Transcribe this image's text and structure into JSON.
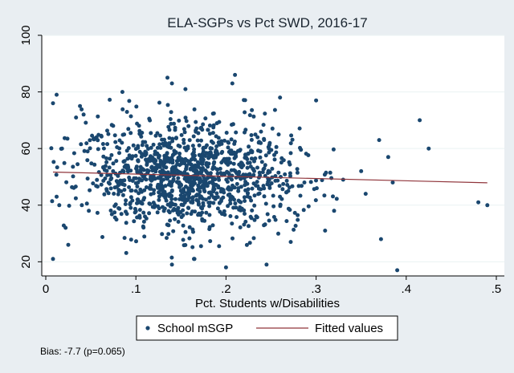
{
  "chart_data": {
    "type": "scatter",
    "title": "ELA-SGPs vs Pct SWD, 2016-17",
    "xlabel": "Pct. Students w/Disabilities",
    "ylabel": "",
    "xlim": [
      0,
      0.5
    ],
    "ylim": [
      15,
      100
    ],
    "x_ticks": [
      0,
      0.1,
      0.2,
      0.3,
      0.4,
      0.5
    ],
    "x_tick_labels": [
      "0",
      ".1",
      ".2",
      ".3",
      ".4",
      ".5"
    ],
    "y_ticks": [
      20,
      40,
      60,
      80,
      100
    ],
    "y_tick_labels": [
      "20",
      "40",
      "60",
      "80",
      "100"
    ],
    "grid": "horizontal",
    "legend_position": "bottom",
    "series": [
      {
        "name": "School mSGP",
        "kind": "scatter",
        "color": "#1a476f",
        "note": "Dense cloud of ~1200 schools centered near x=0.15, y=50 (SD ~9); listed points are the visible outliers",
        "outliers": [
          {
            "x": 0.008,
            "y": 76
          },
          {
            "x": 0.012,
            "y": 79
          },
          {
            "x": 0.018,
            "y": 60
          },
          {
            "x": 0.008,
            "y": 21
          },
          {
            "x": 0.025,
            "y": 26
          },
          {
            "x": 0.012,
            "y": 43
          },
          {
            "x": 0.015,
            "y": 40
          },
          {
            "x": 0.022,
            "y": 32
          },
          {
            "x": 0.038,
            "y": 75
          },
          {
            "x": 0.042,
            "y": 72
          },
          {
            "x": 0.085,
            "y": 80
          },
          {
            "x": 0.135,
            "y": 85
          },
          {
            "x": 0.14,
            "y": 83
          },
          {
            "x": 0.21,
            "y": 86
          },
          {
            "x": 0.207,
            "y": 83
          },
          {
            "x": 0.26,
            "y": 78
          },
          {
            "x": 0.3,
            "y": 77
          },
          {
            "x": 0.155,
            "y": 81
          },
          {
            "x": 0.245,
            "y": 19
          },
          {
            "x": 0.2,
            "y": 18
          },
          {
            "x": 0.14,
            "y": 19
          },
          {
            "x": 0.165,
            "y": 21
          },
          {
            "x": 0.33,
            "y": 49
          },
          {
            "x": 0.35,
            "y": 52
          },
          {
            "x": 0.355,
            "y": 44
          },
          {
            "x": 0.37,
            "y": 63
          },
          {
            "x": 0.372,
            "y": 28
          },
          {
            "x": 0.38,
            "y": 57
          },
          {
            "x": 0.385,
            "y": 48
          },
          {
            "x": 0.39,
            "y": 17
          },
          {
            "x": 0.415,
            "y": 70
          },
          {
            "x": 0.425,
            "y": 60
          },
          {
            "x": 0.48,
            "y": 41
          },
          {
            "x": 0.49,
            "y": 40
          },
          {
            "x": 0.31,
            "y": 31
          },
          {
            "x": 0.32,
            "y": 38
          }
        ]
      },
      {
        "name": "Fitted values",
        "kind": "line",
        "color": "#90353b",
        "x": [
          0.008,
          0.49
        ],
        "y": [
          51.7,
          47.9
        ]
      }
    ],
    "annotations": [
      "Bias:  -7.7 (p=0.065)"
    ]
  }
}
